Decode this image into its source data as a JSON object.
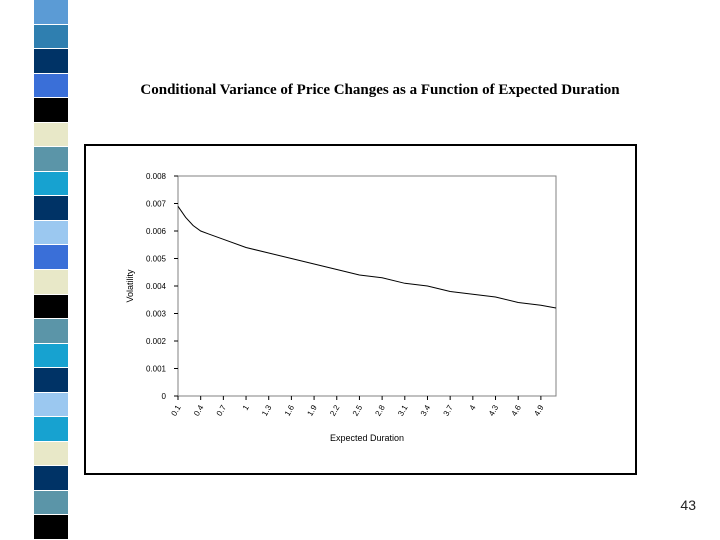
{
  "slide": {
    "title": "Conditional Variance of Price Changes as a Function of Expected Duration",
    "page_number": "43"
  },
  "decoration": {
    "colors": [
      "#5B9BD5",
      "#2F7FB0",
      "#003366",
      "#3A6FD8",
      "#000000",
      "#E8E8C8",
      "#5B95A8",
      "#17A2D0",
      "#003366",
      "#9BC8F0",
      "#3A6FD8",
      "#E8E8C8",
      "#000000",
      "#5B95A8",
      "#17A2D0",
      "#003366",
      "#9BC8F0",
      "#17A2D0",
      "#E8E8C8",
      "#003366",
      "#5B95A8",
      "#000000"
    ]
  },
  "chart_data": {
    "type": "line",
    "title": "",
    "xlabel": "Expected Duration",
    "ylabel": "Volatility",
    "categories": [
      "0.1",
      "0.4",
      "0.7",
      "1",
      "1.3",
      "1.6",
      "1.9",
      "2.2",
      "2.5",
      "2.8",
      "3.1",
      "3.4",
      "3.7",
      "4",
      "4.3",
      "4.6",
      "4.9"
    ],
    "ytick_labels": [
      "0",
      "0.001",
      "0.002",
      "0.003",
      "0.004",
      "0.005",
      "0.006",
      "0.007",
      "0.008"
    ],
    "ylim": [
      0,
      0.008
    ],
    "xlim": [
      0.1,
      5.1
    ],
    "grid": false,
    "legend": "none",
    "line_color": "#000000",
    "series": [
      {
        "x": [
          0.1,
          0.2,
          0.3,
          0.4,
          0.5,
          0.7,
          1.0,
          1.3,
          1.6,
          1.9,
          2.2,
          2.5,
          2.8,
          3.1,
          3.4,
          3.7,
          4.0,
          4.3,
          4.6,
          4.9,
          5.1
        ],
        "values": [
          0.0069,
          0.0065,
          0.0062,
          0.006,
          0.0059,
          0.0057,
          0.0054,
          0.0052,
          0.005,
          0.0048,
          0.0046,
          0.0044,
          0.0043,
          0.0041,
          0.004,
          0.0038,
          0.0037,
          0.0036,
          0.0034,
          0.0033,
          0.0032
        ]
      }
    ]
  }
}
